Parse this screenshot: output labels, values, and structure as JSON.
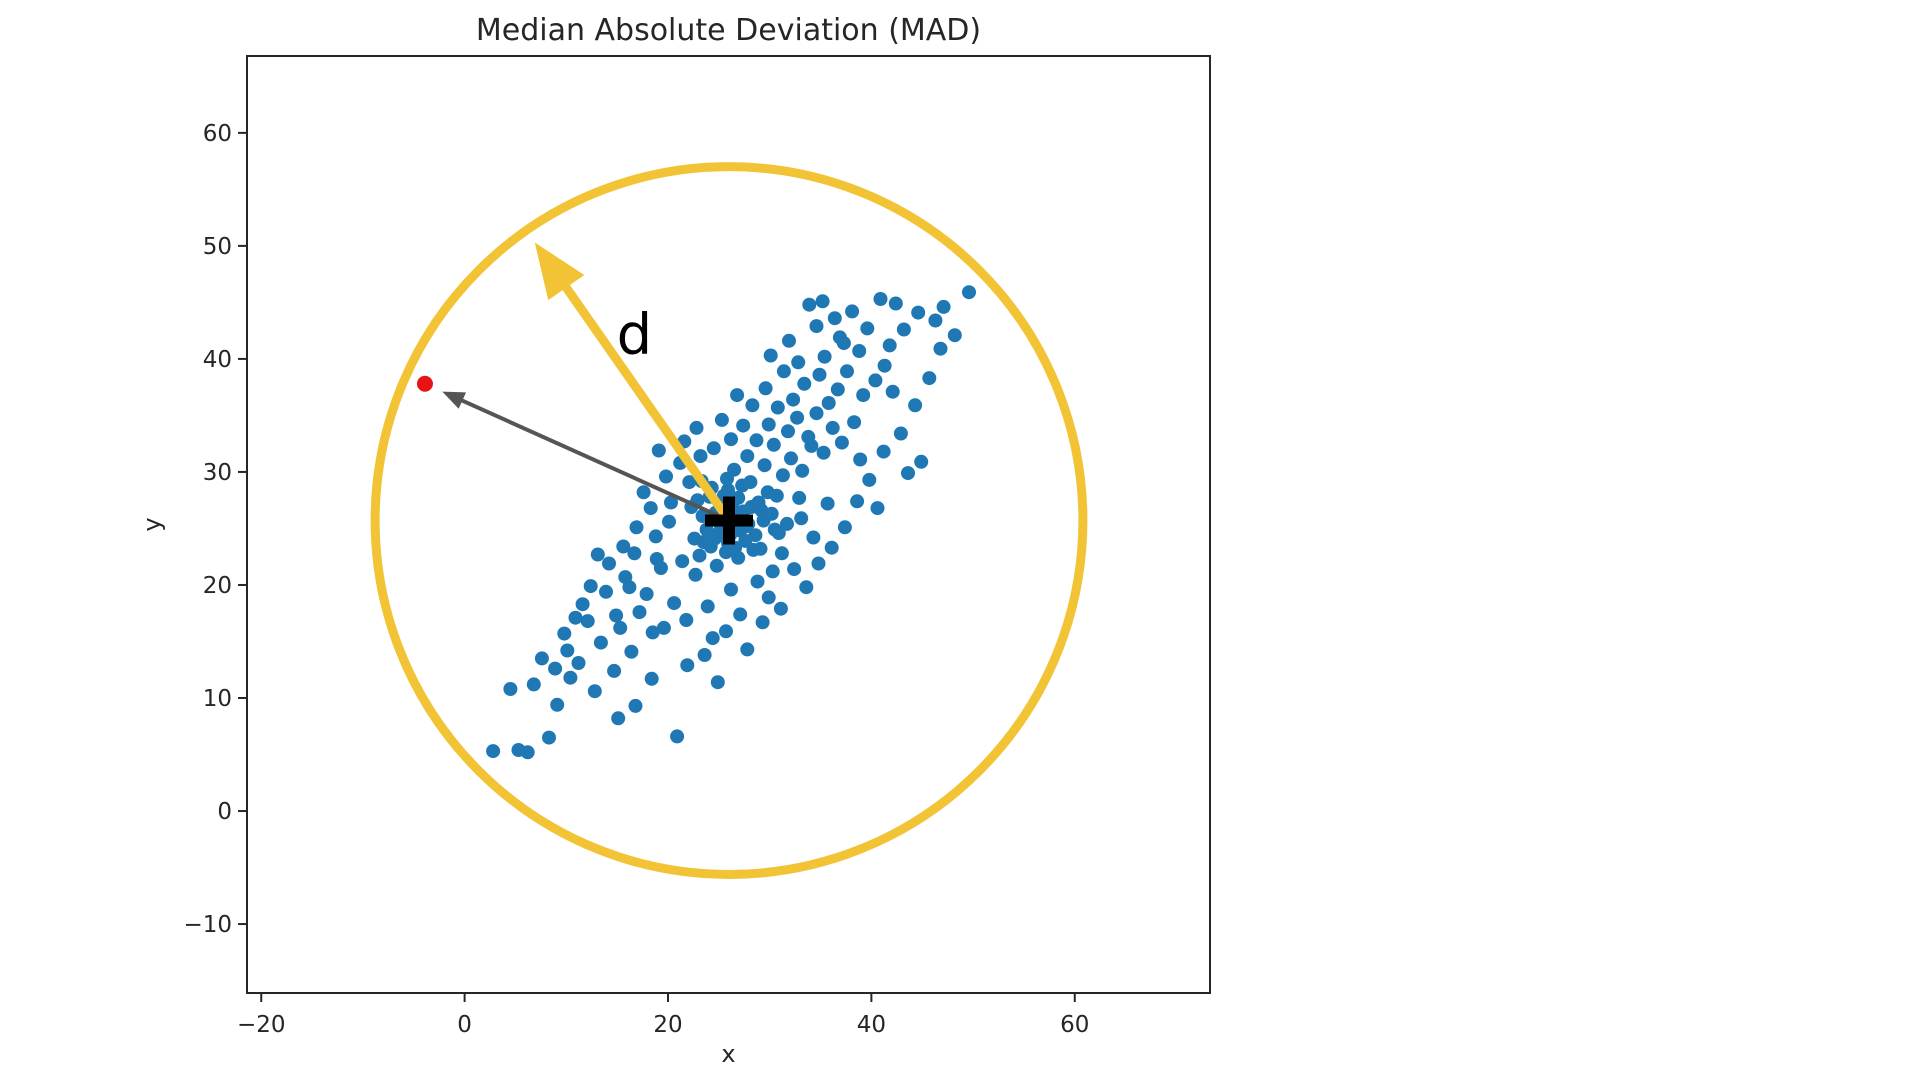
{
  "figure": {
    "background": "#ffffff",
    "title": "Median Absolute Deviation (MAD)",
    "d_label": "d"
  },
  "colors": {
    "points": "#1f77b4",
    "outlier": "#e81414",
    "circle": "#f2c335",
    "mad_arrow": "#f2c335",
    "outlier_arrow": "#555555",
    "median_marker": "#000000",
    "axis": "#262626",
    "text": "#262626"
  },
  "chart_data": {
    "type": "scatter",
    "title": "Median Absolute Deviation (MAD)",
    "xlabel": "x",
    "ylabel": "y",
    "xlim": [
      -21.4,
      73.3
    ],
    "ylim": [
      -16.1,
      66.8
    ],
    "x_ticks": [
      -20,
      0,
      20,
      40,
      60
    ],
    "y_ticks": [
      -10,
      0,
      10,
      20,
      30,
      40,
      50,
      60
    ],
    "grid": false,
    "legend": "none",
    "median_center": {
      "x": 26,
      "y": 25.7,
      "marker": "+",
      "color": "#000000"
    },
    "mad_circle": {
      "cx": 26,
      "cy": 25.7,
      "radius_x_units": 34.8,
      "color": "#f2c335",
      "fill": "none"
    },
    "arrows": [
      {
        "name": "mad-radius-arrow",
        "from": [
          26,
          25.7
        ],
        "to": [
          6.9,
          50.3
        ],
        "color": "#f2c335",
        "label": "d"
      },
      {
        "name": "outlier-distance-arrow",
        "from": [
          26,
          25.7
        ],
        "to": [
          -3.9,
          37.8
        ],
        "color": "#555555",
        "label": ""
      }
    ],
    "annotations": [
      {
        "text": "d",
        "x": 16.7,
        "y": 42.2,
        "font_px": 56,
        "color": "#000000"
      }
    ],
    "series": [
      {
        "name": "data-points",
        "color": "#1f77b4",
        "marker_radius_px": 7,
        "points": [
          [
            2.8,
            5.3
          ],
          [
            6.2,
            5.2
          ],
          [
            8.3,
            6.5
          ],
          [
            4.5,
            10.8
          ],
          [
            6.8,
            11.2
          ],
          [
            9.1,
            9.4
          ],
          [
            10.4,
            11.8
          ],
          [
            7.6,
            13.5
          ],
          [
            11.2,
            13.1
          ],
          [
            12.8,
            10.6
          ],
          [
            9.8,
            15.7
          ],
          [
            13.4,
            14.9
          ],
          [
            12.1,
            16.8
          ],
          [
            14.7,
            12.4
          ],
          [
            15.3,
            16.2
          ],
          [
            11.6,
            18.3
          ],
          [
            16.4,
            14.1
          ],
          [
            17.2,
            17.6
          ],
          [
            13.9,
            19.4
          ],
          [
            18.5,
            15.8
          ],
          [
            15.8,
            20.7
          ],
          [
            17.9,
            19.2
          ],
          [
            19.3,
            21.5
          ],
          [
            16.7,
            22.8
          ],
          [
            20.6,
            18.4
          ],
          [
            21.4,
            22.1
          ],
          [
            18.8,
            24.3
          ],
          [
            22.7,
            20.9
          ],
          [
            23.5,
            23.8
          ],
          [
            20.1,
            25.6
          ],
          [
            24.8,
            21.7
          ],
          [
            25.6,
            24.5
          ],
          [
            22.3,
            26.9
          ],
          [
            26.9,
            22.4
          ],
          [
            27.7,
            25.2
          ],
          [
            24.1,
            27.8
          ],
          [
            28.4,
            23.1
          ],
          [
            29.2,
            26.6
          ],
          [
            25.9,
            28.4
          ],
          [
            30.5,
            24.9
          ],
          [
            21.8,
            16.9
          ],
          [
            23.9,
            18.1
          ],
          [
            26.2,
            19.6
          ],
          [
            28.8,
            20.3
          ],
          [
            31.2,
            22.8
          ],
          [
            19.6,
            16.2
          ],
          [
            24.4,
            15.3
          ],
          [
            27.1,
            17.4
          ],
          [
            29.9,
            18.9
          ],
          [
            32.4,
            21.4
          ],
          [
            24.6,
            24.1
          ],
          [
            25.2,
            25.3
          ],
          [
            25.9,
            23.7
          ],
          [
            26.4,
            26.2
          ],
          [
            27.1,
            24.8
          ],
          [
            25.4,
            26.8
          ],
          [
            26.8,
            25.9
          ],
          [
            24.9,
            25.9
          ],
          [
            26.1,
            24.4
          ],
          [
            27.4,
            26.5
          ],
          [
            25.7,
            22.9
          ],
          [
            26.6,
            23.3
          ],
          [
            24.2,
            23.4
          ],
          [
            27.9,
            25.4
          ],
          [
            25.1,
            24.7
          ],
          [
            26.3,
            27.1
          ],
          [
            27.6,
            23.9
          ],
          [
            24.7,
            26.4
          ],
          [
            26.9,
            27.7
          ],
          [
            25.5,
            27.9
          ],
          [
            28.2,
            26.9
          ],
          [
            23.8,
            24.9
          ],
          [
            28.6,
            24.4
          ],
          [
            23.4,
            26.1
          ],
          [
            28.9,
            27.3
          ],
          [
            24.3,
            28.6
          ],
          [
            27.3,
            28.8
          ],
          [
            25.8,
            29.4
          ],
          [
            28.1,
            29.1
          ],
          [
            26.5,
            30.2
          ],
          [
            23.1,
            22.6
          ],
          [
            22.6,
            24.1
          ],
          [
            29.4,
            25.7
          ],
          [
            29.8,
            28.2
          ],
          [
            22.9,
            27.5
          ],
          [
            30.2,
            26.3
          ],
          [
            23.3,
            29.2
          ],
          [
            30.7,
            27.9
          ],
          [
            29.1,
            23.2
          ],
          [
            30.9,
            24.6
          ],
          [
            27.8,
            31.4
          ],
          [
            29.5,
            30.6
          ],
          [
            31.3,
            29.7
          ],
          [
            28.7,
            32.8
          ],
          [
            32.1,
            31.2
          ],
          [
            30.4,
            32.4
          ],
          [
            33.2,
            30.1
          ],
          [
            31.8,
            33.6
          ],
          [
            29.9,
            34.2
          ],
          [
            34.1,
            32.3
          ],
          [
            32.7,
            34.8
          ],
          [
            35.3,
            31.7
          ],
          [
            33.8,
            33.1
          ],
          [
            30.8,
            35.7
          ],
          [
            36.2,
            33.9
          ],
          [
            34.6,
            35.2
          ],
          [
            32.3,
            36.4
          ],
          [
            37.1,
            32.6
          ],
          [
            35.8,
            36.1
          ],
          [
            33.4,
            37.8
          ],
          [
            38.3,
            34.4
          ],
          [
            36.7,
            37.3
          ],
          [
            34.9,
            38.6
          ],
          [
            39.2,
            36.8
          ],
          [
            37.6,
            38.9
          ],
          [
            35.4,
            40.2
          ],
          [
            40.4,
            38.1
          ],
          [
            38.8,
            40.7
          ],
          [
            36.9,
            41.9
          ],
          [
            41.3,
            39.4
          ],
          [
            33.9,
            44.8
          ],
          [
            35.2,
            45.1
          ],
          [
            36.4,
            43.6
          ],
          [
            38.1,
            44.2
          ],
          [
            34.6,
            42.9
          ],
          [
            37.3,
            41.4
          ],
          [
            39.6,
            42.7
          ],
          [
            41.8,
            41.2
          ],
          [
            43.2,
            42.6
          ],
          [
            44.6,
            44.1
          ],
          [
            46.3,
            43.4
          ],
          [
            47.1,
            44.6
          ],
          [
            49.6,
            45.9
          ],
          [
            42.4,
            44.9
          ],
          [
            40.9,
            45.3
          ],
          [
            39.8,
            29.3
          ],
          [
            41.2,
            31.8
          ],
          [
            42.9,
            33.4
          ],
          [
            44.3,
            35.9
          ],
          [
            45.7,
            38.3
          ],
          [
            40.6,
            26.8
          ],
          [
            43.6,
            29.9
          ],
          [
            38.6,
            27.4
          ],
          [
            37.4,
            25.1
          ],
          [
            36.1,
            23.3
          ],
          [
            34.8,
            21.9
          ],
          [
            33.6,
            19.8
          ],
          [
            35.7,
            27.2
          ],
          [
            38.9,
            31.1
          ],
          [
            42.1,
            37.1
          ],
          [
            46.8,
            40.9
          ],
          [
            48.2,
            42.1
          ],
          [
            14.2,
            21.9
          ],
          [
            15.6,
            23.4
          ],
          [
            13.1,
            22.7
          ],
          [
            16.9,
            25.1
          ],
          [
            18.3,
            26.8
          ],
          [
            17.6,
            28.2
          ],
          [
            19.8,
            29.6
          ],
          [
            21.2,
            30.8
          ],
          [
            20.3,
            27.3
          ],
          [
            22.1,
            29.1
          ],
          [
            18.9,
            22.3
          ],
          [
            16.2,
            19.8
          ],
          [
            14.9,
            17.3
          ],
          [
            12.4,
            19.9
          ],
          [
            10.9,
            17.1
          ],
          [
            19.1,
            31.9
          ],
          [
            21.6,
            32.7
          ],
          [
            23.2,
            31.4
          ],
          [
            22.8,
            33.9
          ],
          [
            24.5,
            32.1
          ],
          [
            26.2,
            32.9
          ],
          [
            25.3,
            34.6
          ],
          [
            27.4,
            34.1
          ],
          [
            28.3,
            35.9
          ],
          [
            26.8,
            36.8
          ],
          [
            29.6,
            37.4
          ],
          [
            31.4,
            38.9
          ],
          [
            30.1,
            40.3
          ],
          [
            32.8,
            39.7
          ],
          [
            31.9,
            41.6
          ],
          [
            20.9,
            6.6
          ],
          [
            16.8,
            9.3
          ],
          [
            18.4,
            11.7
          ],
          [
            15.1,
            8.2
          ],
          [
            10.1,
            14.2
          ],
          [
            8.9,
            12.6
          ],
          [
            5.3,
            5.4
          ],
          [
            33.1,
            25.9
          ],
          [
            34.3,
            24.2
          ],
          [
            31.7,
            25.4
          ],
          [
            30.3,
            21.2
          ],
          [
            32.9,
            27.7
          ],
          [
            44.9,
            30.9
          ],
          [
            21.9,
            12.9
          ],
          [
            23.6,
            13.8
          ],
          [
            25.7,
            15.9
          ],
          [
            27.8,
            14.3
          ],
          [
            29.3,
            16.7
          ],
          [
            31.1,
            17.9
          ],
          [
            24.9,
            11.4
          ]
        ]
      },
      {
        "name": "outlier-point",
        "color": "#e81414",
        "marker_radius_px": 8,
        "points": [
          [
            -3.9,
            37.8
          ]
        ]
      }
    ]
  }
}
